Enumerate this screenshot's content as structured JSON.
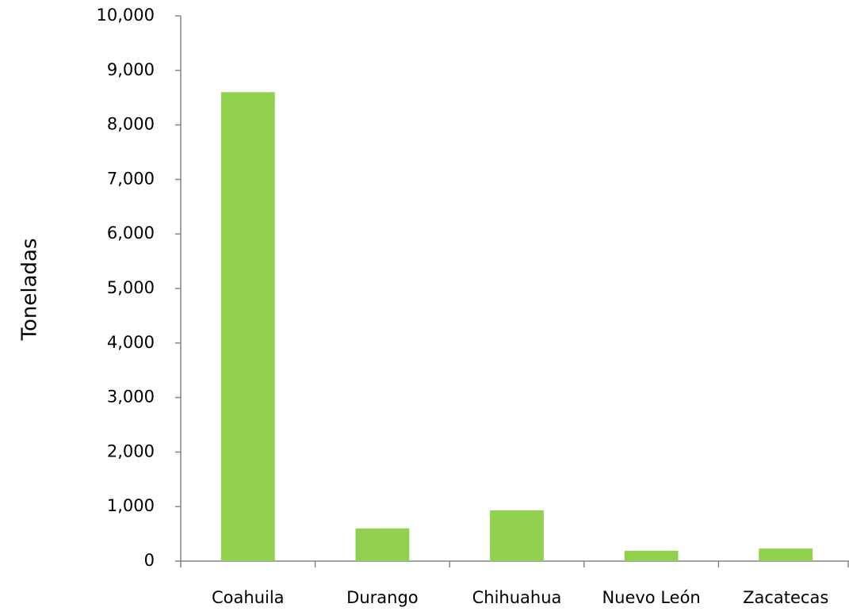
{
  "chart_data": {
    "type": "bar",
    "y_label": "Toneladas",
    "categories": [
      "Coahuila",
      "Durango",
      "Chihuahua",
      "Nuevo León",
      "Zacatecas"
    ],
    "values": [
      8600,
      600,
      930,
      190,
      230
    ],
    "color": "#92d050",
    "ylim": [
      0,
      10000
    ],
    "yticks": [
      0,
      {
        "value": 1000,
        "label": "1,000"
      },
      {
        "value": 2000,
        "label": "2,000"
      },
      {
        "value": 3000,
        "label": "3,000"
      },
      {
        "value": 4000,
        "label": "4,000"
      },
      {
        "value": 5000,
        "label": "5,000"
      },
      {
        "value": 6000,
        "label": "6,000"
      },
      {
        "value": 7000,
        "label": "7,000"
      },
      {
        "value": 8000,
        "label": "8,000"
      },
      {
        "value": 9000,
        "label": "9,000"
      },
      {
        "value": 10000,
        "label": "10,000"
      }
    ],
    "grid": false
  }
}
